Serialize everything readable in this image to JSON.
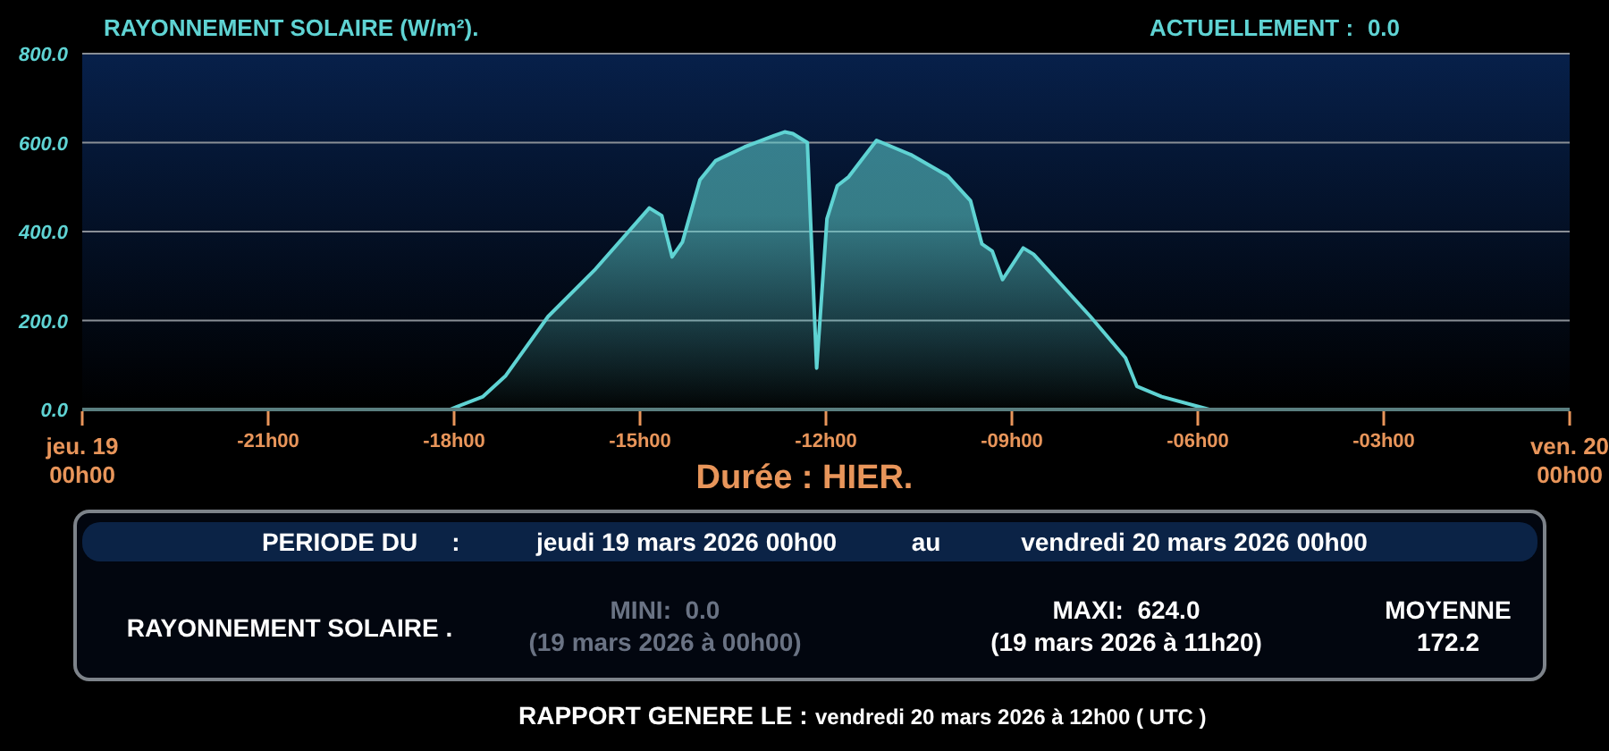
{
  "chart_data": {
    "type": "area",
    "title": "RAYONNEMENT SOLAIRE (W/m²).",
    "xlabel": "Durée : HIER.",
    "x": [
      "2026-03-19T00:00",
      "2026-03-19T05:56",
      "2026-03-19T06:28",
      "2026-03-19T06:50",
      "2026-03-19T07:31",
      "2026-03-19T08:17",
      "2026-03-19T09:09",
      "2026-03-19T09:21",
      "2026-03-19T09:31",
      "2026-03-19T09:41",
      "2026-03-19T09:58",
      "2026-03-19T10:13",
      "2026-03-19T10:41",
      "2026-03-19T11:10",
      "2026-03-19T11:20",
      "2026-03-19T11:28",
      "2026-03-19T11:42",
      "2026-03-19T11:51",
      "2026-03-19T12:01",
      "2026-03-19T12:11",
      "2026-03-19T12:22",
      "2026-03-19T12:49",
      "2026-03-19T13:23",
      "2026-03-19T13:58",
      "2026-03-19T14:20",
      "2026-03-19T14:31",
      "2026-03-19T14:41",
      "2026-03-19T14:51",
      "2026-03-19T15:11",
      "2026-03-19T15:21",
      "2026-03-19T16:16",
      "2026-03-19T16:50",
      "2026-03-19T17:01",
      "2026-03-19T17:25",
      "2026-03-19T18:11",
      "2026-03-20T00:00"
    ],
    "series": [
      {
        "color": "#5fd3d3",
        "values": [
          0,
          0,
          29,
          76,
          209,
          316,
          453,
          436,
          343,
          376,
          516,
          559,
          590,
          616,
          624,
          620,
          600,
          93,
          429,
          503,
          523,
          605,
          572,
          525,
          469,
          372,
          356,
          292,
          363,
          349,
          209,
          116,
          52,
          29,
          0,
          0
        ]
      }
    ],
    "xlim": [
      "2026-03-19T00:00",
      "2026-03-20T00:00"
    ],
    "xticks": [
      {
        "value": "2026-03-19T00:00",
        "label": "jeu. 19\n00h00"
      },
      {
        "value": "2026-03-19T03:00",
        "label": "-21h00"
      },
      {
        "value": "2026-03-19T06:00",
        "label": "-18h00"
      },
      {
        "value": "2026-03-19T09:00",
        "label": "-15h00"
      },
      {
        "value": "2026-03-19T12:00",
        "label": "-12h00"
      },
      {
        "value": "2026-03-19T15:00",
        "label": "-09h00"
      },
      {
        "value": "2026-03-19T18:00",
        "label": "-06h00"
      },
      {
        "value": "2026-03-19T21:00",
        "label": "-03h00"
      },
      {
        "value": "2026-03-20T00:00",
        "label": "ven. 20\n00h00"
      }
    ],
    "ylim": [
      0,
      800
    ],
    "yticks": [
      {
        "value": 0,
        "label": "0.0"
      },
      {
        "value": 200,
        "label": "200.0"
      },
      {
        "value": 400,
        "label": "400.0"
      },
      {
        "value": 600,
        "label": "600.0"
      },
      {
        "value": 800,
        "label": "800.0"
      }
    ],
    "grid": "y",
    "annotations": [
      "ACTUELLEMENT :",
      "0.0",
      "PERIODE DU",
      ":",
      "jeudi 19 mars 2026 00h00",
      "au",
      "vendredi 20 mars 2026 00h00",
      "RAYONNEMENT SOLAIRE .",
      "MINI:  0.0",
      "(19 mars 2026 à 00h00)",
      "MAXI:  624.0",
      "(19 mars 2026 à 11h20)",
      "MOYENNE",
      "172.2",
      "RAPPORT GENERE LE :",
      "vendredi 20 mars 2026 à 12h00 ( UTC )"
    ]
  }
}
